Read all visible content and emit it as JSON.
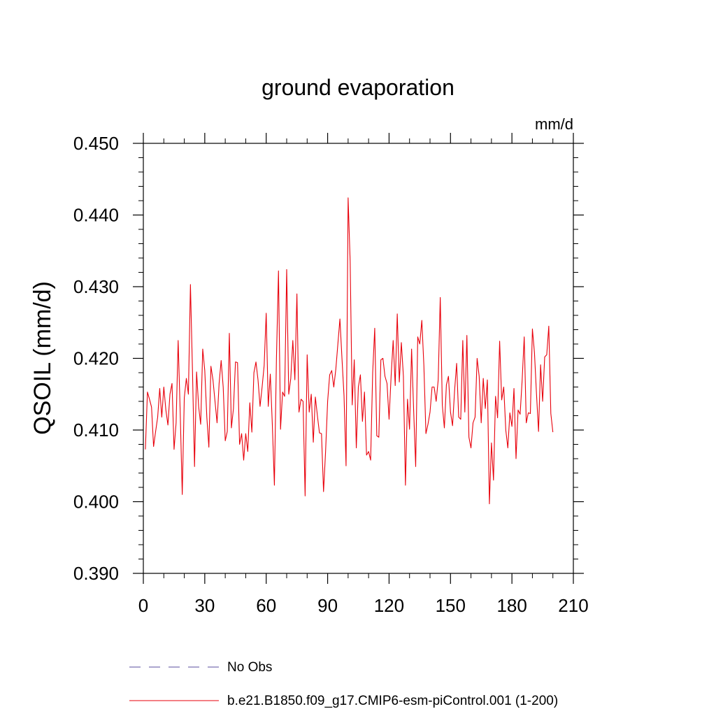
{
  "chart_data": {
    "type": "line",
    "title": "ground evaporation",
    "units": "mm/d",
    "ylabel": "QSOIL  (mm/d)",
    "xlabel": "",
    "xlim": [
      0,
      210
    ],
    "ylim": [
      0.39,
      0.45
    ],
    "xticks": [
      0,
      30,
      60,
      90,
      120,
      150,
      180,
      210
    ],
    "xtick_labels": [
      "0",
      "30",
      "60",
      "90",
      "120",
      "150",
      "180",
      "210"
    ],
    "yticks": [
      0.39,
      0.4,
      0.41,
      0.42,
      0.43,
      0.44,
      0.45
    ],
    "ytick_labels": [
      "0.390",
      "0.400",
      "0.410",
      "0.420",
      "0.430",
      "0.440",
      "0.450"
    ],
    "x_minor_step": 10,
    "y_minor_step": 0.002,
    "grid": false,
    "legend_position": "bottom-left",
    "series": [
      {
        "name": "No Obs",
        "color": "#7a6fb0",
        "style": "dashed",
        "values": []
      },
      {
        "name": "b.e21.B1850.f09_g17.CMIP6-esm-piControl.001 (1-200)",
        "color": "#e8000b",
        "style": "solid",
        "x_start": 1,
        "values": [
          0.4073,
          0.4153,
          0.4143,
          0.4132,
          0.4077,
          0.4098,
          0.4118,
          0.4158,
          0.4118,
          0.416,
          0.4128,
          0.4107,
          0.415,
          0.4165,
          0.4073,
          0.411,
          0.4225,
          0.4125,
          0.401,
          0.4145,
          0.4172,
          0.415,
          0.4303,
          0.4182,
          0.4049,
          0.4181,
          0.4133,
          0.4108,
          0.4213,
          0.4183,
          0.4118,
          0.4076,
          0.4189,
          0.417,
          0.414,
          0.411,
          0.4165,
          0.4197,
          0.416,
          0.4085,
          0.4098,
          0.4235,
          0.4103,
          0.413,
          0.4195,
          0.4194,
          0.408,
          0.4095,
          0.4058,
          0.4095,
          0.407,
          0.4138,
          0.4097,
          0.418,
          0.4195,
          0.417,
          0.4133,
          0.416,
          0.419,
          0.4263,
          0.4133,
          0.4178,
          0.4107,
          0.4023,
          0.42,
          0.4322,
          0.4101,
          0.4153,
          0.4147,
          0.4324,
          0.415,
          0.4172,
          0.4225,
          0.417,
          0.429,
          0.4125,
          0.4143,
          0.414,
          0.4008,
          0.4205,
          0.4125,
          0.415,
          0.4083,
          0.4146,
          0.412,
          0.4096,
          0.4095,
          0.4014,
          0.407,
          0.414,
          0.4177,
          0.4183,
          0.416,
          0.4185,
          0.422,
          0.4255,
          0.42,
          0.4148,
          0.405,
          0.4424,
          0.4335,
          0.4135,
          0.4198,
          0.4075,
          0.416,
          0.4177,
          0.4112,
          0.4153,
          0.4065,
          0.407,
          0.4058,
          0.418,
          0.4242,
          0.4092,
          0.409,
          0.4198,
          0.42,
          0.4175,
          0.4165,
          0.4115,
          0.4175,
          0.4225,
          0.4162,
          0.4262,
          0.4167,
          0.4222,
          0.4175,
          0.4023,
          0.4143,
          0.4101,
          0.4213,
          0.4128,
          0.4049,
          0.423,
          0.422,
          0.4253,
          0.419,
          0.4095,
          0.4108,
          0.4125,
          0.416,
          0.416,
          0.414,
          0.417,
          0.4285,
          0.4135,
          0.4103,
          0.4163,
          0.4175,
          0.4125,
          0.4106,
          0.4155,
          0.4193,
          0.4118,
          0.4115,
          0.4225,
          0.4125,
          0.4232,
          0.409,
          0.4075,
          0.411,
          0.4118,
          0.42,
          0.4175,
          0.411,
          0.4172,
          0.413,
          0.417,
          0.3997,
          0.4082,
          0.403,
          0.4147,
          0.4117,
          0.4224,
          0.4142,
          0.416,
          0.41,
          0.4075,
          0.4124,
          0.4105,
          0.4158,
          0.406,
          0.4128,
          0.4122,
          0.417,
          0.423,
          0.411,
          0.4124,
          0.4123,
          0.4241,
          0.4208,
          0.415,
          0.4098,
          0.4191,
          0.414,
          0.4202,
          0.4205,
          0.4245,
          0.4123,
          0.4097
        ]
      }
    ]
  }
}
